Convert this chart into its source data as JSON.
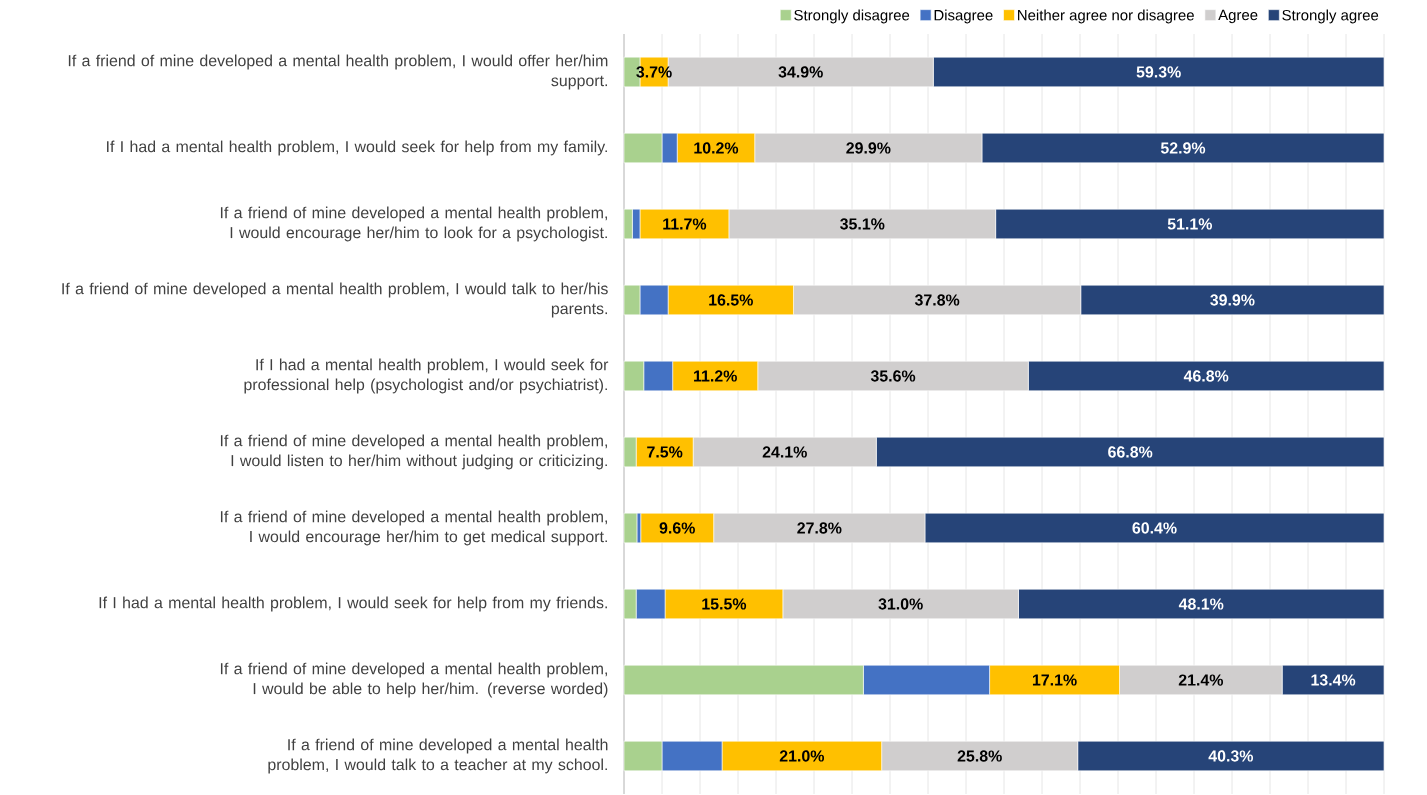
{
  "chart_data": {
    "type": "bar",
    "orientation": "horizontal",
    "stacked": true,
    "legend": "top",
    "grid": "x",
    "tick_labels": "y",
    "categories": [
      "If a friend of mine developed a mental health problem, I would offer her/him support.",
      "If I had a mental health problem, I would seek for help from my family.",
      "If a friend of mine developed a mental health problem, I would encourage her/him to look for a psychologist.",
      "If a friend of mine developed a mental health problem, I would talk to her/his parents.",
      "If I had a mental health problem, I would seek for professional help (psychologist and/or psychiatrist).",
      "If a friend of mine developed a mental health problem, I would listen to her/him without judging or criticizing.",
      "If a friend of mine developed a mental health problem, I would encourage her/him to get medical support.",
      "If I had a mental health problem, I would seek for help from my friends.",
      "If a friend of mine developed a mental health problem, I would be able to help her/him. (reverse worded)",
      "If a friend of mine developed a mental health problem, I would talk to a teacher at my school."
    ],
    "xlim": [
      0,
      100
    ],
    "series": [
      {
        "name": "Strongly disagree",
        "color": "#a9d18e",
        "values": [
          2.1,
          5.0,
          1.1,
          2.1,
          2.6,
          1.6,
          1.7,
          1.6,
          31.5,
          5.0
        ],
        "value_labels": [
          null,
          null,
          null,
          null,
          null,
          null,
          null,
          null,
          null,
          null
        ]
      },
      {
        "name": "Disagree",
        "color": "#4472c4",
        "values": [
          0,
          2.0,
          1.0,
          3.7,
          3.8,
          0,
          0.5,
          3.8,
          16.6,
          7.9
        ],
        "value_labels": [
          null,
          null,
          null,
          null,
          null,
          null,
          null,
          null,
          null,
          null
        ]
      },
      {
        "name": "Neither agree nor disagree",
        "color": "#ffc000",
        "values": [
          3.7,
          10.2,
          11.7,
          16.5,
          11.2,
          7.5,
          9.6,
          15.5,
          17.1,
          21.0
        ],
        "value_labels": [
          "3.7%",
          "10.2%",
          "11.7%",
          "16.5%",
          "11.2%",
          "7.5%",
          "9.6%",
          "15.5%",
          "17.1%",
          "21.0%"
        ]
      },
      {
        "name": "Agree",
        "color": "#d0cece",
        "values": [
          34.9,
          29.9,
          35.1,
          37.8,
          35.6,
          24.1,
          27.8,
          31.0,
          21.4,
          25.8
        ],
        "value_labels": [
          "34.9%",
          "29.9%",
          "35.1%",
          "37.8%",
          "35.6%",
          "24.1%",
          "27.8%",
          "31.0%",
          "21.4%",
          "25.8%"
        ]
      },
      {
        "name": "Strongly agree",
        "color": "#264478",
        "values": [
          59.3,
          52.9,
          51.1,
          39.9,
          46.8,
          66.8,
          60.4,
          48.1,
          13.4,
          40.3
        ],
        "value_labels": [
          "59.3%",
          "52.9%",
          "51.1%",
          "39.9%",
          "46.8%",
          "66.8%",
          "60.4%",
          "48.1%",
          "13.4%",
          "40.3%"
        ]
      }
    ]
  }
}
